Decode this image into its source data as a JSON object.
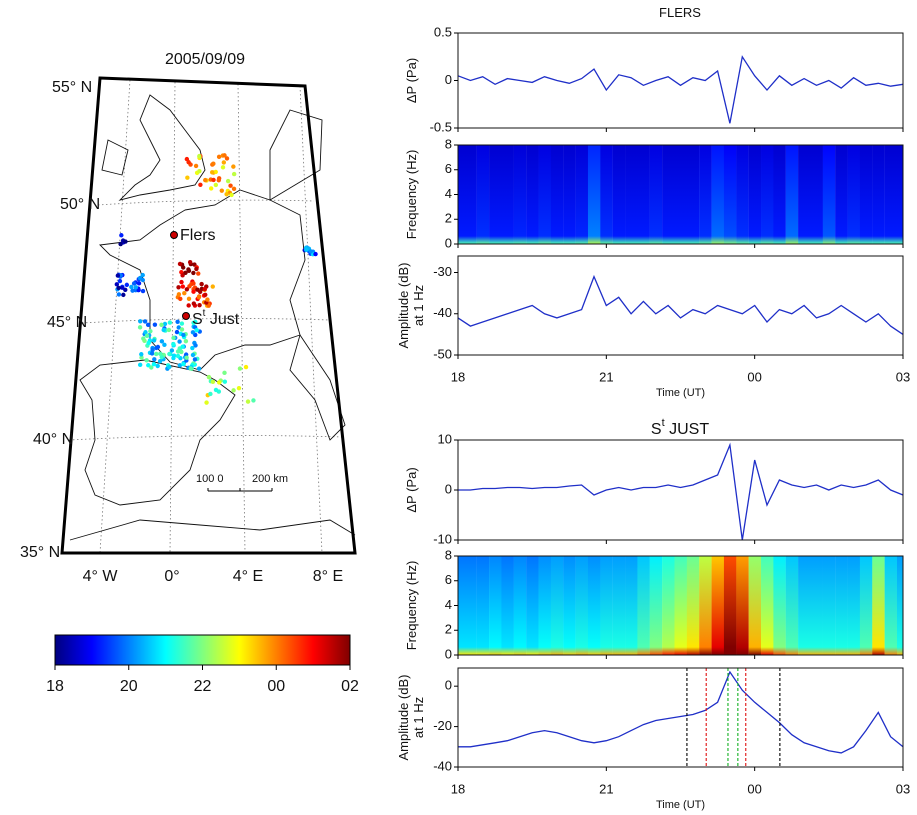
{
  "chart_data": [
    {
      "type": "map",
      "title": "2005/09/09",
      "lat_labels": [
        "55° N",
        "50° N",
        "45° N",
        "40° N",
        "35° N"
      ],
      "lon_labels": [
        "4° W",
        "0°",
        "4° E",
        "8° E"
      ],
      "station_flers": "Flers",
      "station_stjust": [
        "S",
        "t",
        " Just"
      ],
      "scale_labels": [
        "100 0",
        "200 km"
      ]
    },
    {
      "type": "colorbar",
      "lim": [
        18,
        26
      ],
      "colormap": "jet",
      "ticks": [
        18,
        20,
        22,
        {
          "value": 24,
          "label": "00"
        },
        {
          "value": 26,
          "label": "02"
        }
      ]
    },
    {
      "type": "stacked",
      "title": [
        "FLERS"
      ],
      "xlabel": "Time (UT)",
      "xlim": [
        18,
        27
      ],
      "xticks": [
        18,
        21,
        {
          "value": 24,
          "label": "00"
        },
        {
          "value": 27,
          "label": "03"
        }
      ],
      "panels": [
        {
          "type": "line",
          "ylabel": [
            "ΔP (Pa)"
          ],
          "color": "#1f2fc8",
          "ylim": [
            -0.5,
            0.5
          ],
          "yticks": [
            -0.5,
            0,
            0.5
          ],
          "x": [
            18,
            18.25,
            18.5,
            18.75,
            19,
            19.25,
            19.5,
            19.75,
            20,
            20.25,
            20.5,
            20.75,
            21,
            21.25,
            21.5,
            21.75,
            22,
            22.25,
            22.5,
            22.75,
            23,
            23.25,
            23.5,
            23.75,
            24,
            24.25,
            24.5,
            24.75,
            25,
            25.25,
            25.5,
            25.75,
            26,
            26.25,
            26.5,
            26.75,
            27
          ],
          "values": [
            0.05,
            0,
            0.04,
            -0.04,
            0.02,
            0,
            -0.02,
            0.04,
            0,
            -0.03,
            0.02,
            0.12,
            -0.1,
            0.06,
            0.03,
            -0.05,
            0,
            0.04,
            -0.05,
            0.03,
            0,
            0.1,
            -0.45,
            0.25,
            0.05,
            -0.1,
            0.05,
            -0.05,
            0.02,
            -0.05,
            0,
            -0.08,
            0.03,
            -0.05,
            -0.03,
            -0.06,
            -0.04
          ]
        },
        {
          "type": "heatmap",
          "ylabel": [
            "Frequency (Hz)"
          ],
          "ylim": [
            0,
            8
          ],
          "yticks": [
            0,
            2,
            4,
            6,
            8
          ],
          "x": [
            18,
            18.25,
            18.5,
            18.75,
            19,
            19.25,
            19.5,
            19.75,
            20,
            20.25,
            20.5,
            20.75,
            21,
            21.25,
            21.5,
            21.75,
            22,
            22.25,
            22.5,
            22.75,
            23,
            23.25,
            23.5,
            23.75,
            24,
            24.25,
            24.5,
            24.75,
            25,
            25.25,
            25.5,
            25.75,
            26,
            26.25,
            26.5,
            26.75,
            27
          ],
          "values": [
            0.1,
            0.1,
            0.12,
            0.1,
            0.1,
            0.11,
            0.1,
            0.12,
            0.1,
            0.1,
            0.11,
            0.2,
            0.12,
            0.1,
            0.1,
            0.1,
            0.12,
            0.1,
            0.1,
            0.1,
            0.12,
            0.18,
            0.15,
            0.12,
            0.1,
            0.12,
            0.1,
            0.18,
            0.1,
            0.1,
            0.16,
            0.1,
            0.12,
            0.1,
            0.1,
            0.1,
            0.1
          ]
        },
        {
          "type": "line",
          "ylabel": [
            "Amplitude (dB)",
            "at 1 Hz"
          ],
          "color": "#1f2fc8",
          "ylim": [
            -50,
            -26
          ],
          "yticks": [
            -30,
            -40,
            -50
          ],
          "x": [
            18,
            18.25,
            18.5,
            18.75,
            19,
            19.25,
            19.5,
            19.75,
            20,
            20.25,
            20.5,
            20.75,
            21,
            21.25,
            21.5,
            21.75,
            22,
            22.25,
            22.5,
            22.75,
            23,
            23.25,
            23.5,
            23.75,
            24,
            24.25,
            24.5,
            24.75,
            25,
            25.25,
            25.5,
            25.75,
            26,
            26.25,
            26.5,
            26.75,
            27
          ],
          "values": [
            -41,
            -43,
            -42,
            -41,
            -40,
            -39,
            -38,
            -40,
            -41,
            -40,
            -39,
            -31,
            -38,
            -36,
            -40,
            -37,
            -40,
            -38,
            -41,
            -39,
            -40,
            -38,
            -39,
            -40,
            -38,
            -42,
            -39,
            -40,
            -38,
            -41,
            -40,
            -38,
            -40,
            -42,
            -40,
            -43,
            -45
          ]
        }
      ]
    },
    {
      "type": "stacked",
      "title": [
        "S",
        "t",
        " JUST"
      ],
      "xlabel": "Time (UT)",
      "xlim": [
        18,
        27
      ],
      "xticks": [
        18,
        21,
        {
          "value": 24,
          "label": "00"
        },
        {
          "value": 27,
          "label": "03"
        }
      ],
      "panels": [
        {
          "type": "line",
          "ylabel": [
            "ΔP (Pa)"
          ],
          "color": "#1f2fc8",
          "ylim": [
            -10,
            10
          ],
          "yticks": [
            -10,
            0,
            10
          ],
          "x": [
            18,
            18.25,
            18.5,
            18.75,
            19,
            19.25,
            19.5,
            19.75,
            20,
            20.25,
            20.5,
            20.75,
            21,
            21.25,
            21.5,
            21.75,
            22,
            22.25,
            22.5,
            22.75,
            23,
            23.25,
            23.5,
            23.75,
            24,
            24.25,
            24.5,
            24.75,
            25,
            25.25,
            25.5,
            25.75,
            26,
            26.25,
            26.5,
            26.75,
            27
          ],
          "values": [
            0,
            0,
            0.3,
            0.3,
            0.5,
            0.5,
            0.3,
            0.5,
            0.5,
            0.8,
            1,
            -1,
            0,
            0.5,
            0,
            0.5,
            0.5,
            1,
            0.5,
            1,
            2,
            3,
            9,
            -10,
            6,
            -3,
            2,
            1,
            0.5,
            1,
            0,
            1,
            0.5,
            1,
            2,
            0,
            -1
          ]
        },
        {
          "type": "heatmap",
          "ylabel": [
            "Frequency (Hz)"
          ],
          "ylim": [
            0,
            8
          ],
          "yticks": [
            0,
            2,
            4,
            6,
            8
          ],
          "x": [
            18,
            18.25,
            18.5,
            18.75,
            19,
            19.25,
            19.5,
            19.75,
            20,
            20.25,
            20.5,
            20.75,
            21,
            21.25,
            21.5,
            21.75,
            22,
            22.25,
            22.5,
            22.75,
            23,
            23.25,
            23.5,
            23.75,
            24,
            24.25,
            24.5,
            24.75,
            25,
            25.25,
            25.5,
            25.75,
            26,
            26.25,
            26.5,
            26.75,
            27
          ],
          "values": [
            0.3,
            0.3,
            0.3,
            0.32,
            0.3,
            0.32,
            0.3,
            0.33,
            0.35,
            0.33,
            0.35,
            0.33,
            0.35,
            0.35,
            0.35,
            0.4,
            0.45,
            0.5,
            0.55,
            0.6,
            0.7,
            0.85,
            1,
            0.9,
            0.65,
            0.55,
            0.45,
            0.4,
            0.35,
            0.35,
            0.35,
            0.35,
            0.35,
            0.4,
            0.6,
            0.4,
            0.35
          ]
        },
        {
          "type": "line",
          "ylabel": [
            "Amplitude (dB)",
            "at 1 Hz"
          ],
          "color": "#1f2fc8",
          "ylim": [
            -40,
            9
          ],
          "yticks": [
            0,
            -20,
            -40
          ],
          "x": [
            18,
            18.25,
            18.5,
            18.75,
            19,
            19.25,
            19.5,
            19.75,
            20,
            20.25,
            20.5,
            20.75,
            21,
            21.25,
            21.5,
            21.75,
            22,
            22.25,
            22.5,
            22.75,
            23,
            23.25,
            23.5,
            23.75,
            24,
            24.25,
            24.5,
            24.75,
            25,
            25.25,
            25.5,
            25.75,
            26,
            26.25,
            26.5,
            26.75,
            27
          ],
          "values": [
            -30,
            -30,
            -29,
            -28,
            -27,
            -25,
            -23,
            -22,
            -23,
            -25,
            -27,
            -28,
            -27,
            -25,
            -22,
            -19,
            -17,
            -16,
            -15,
            -14,
            -12,
            -8,
            7,
            -2,
            -8,
            -13,
            -18,
            -24,
            -28,
            -30,
            -32,
            -33,
            -30,
            -22,
            -13,
            -25,
            -30
          ],
          "markers": [
            {
              "value": 22.63,
              "color": "#000000"
            },
            {
              "value": 24.51,
              "color": "#000000"
            },
            {
              "value": 23.02,
              "color": "#e01010"
            },
            {
              "value": 23.82,
              "color": "#e01010"
            },
            {
              "value": 23.46,
              "color": "#10b020"
            },
            {
              "value": 23.66,
              "color": "#10b020"
            }
          ]
        }
      ]
    }
  ]
}
